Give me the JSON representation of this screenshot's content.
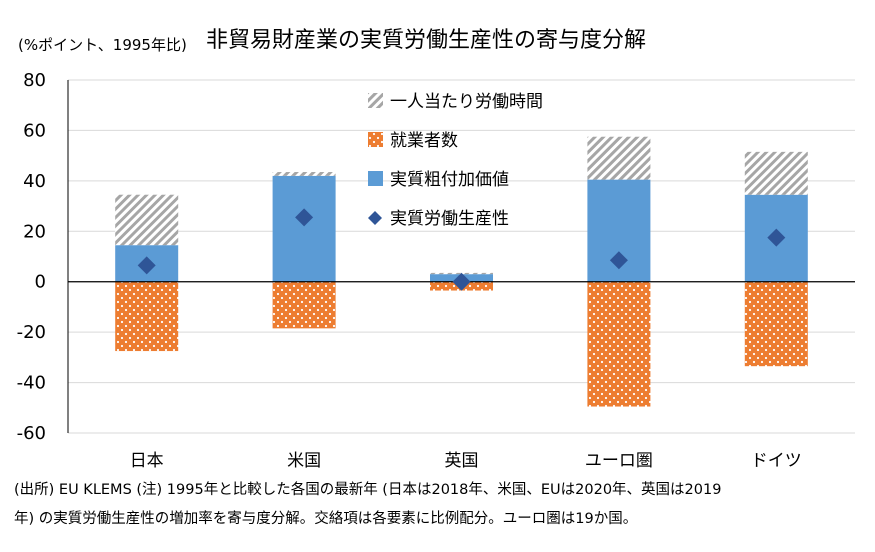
{
  "figure": {
    "unit": "(%ポイント、1995年比)",
    "title": "非貿易財産業の実質労働生産性の寄与度分解",
    "notes": [
      "(出所) EU KLEMS (注) 1995年と比較した各国の最新年 (日本は2018年、米国、EUは2020年、英国は2019",
      "年) の実質労働生産性の増加率を寄与度分解。交絡項は各要素に比例配分。ユーロ圏は19か国。"
    ]
  },
  "chart_data": {
    "type": "bar",
    "stacked": true,
    "categories": [
      "日本",
      "米国",
      "英国",
      "ユーロ圏",
      "ドイツ"
    ],
    "ylim": [
      -60,
      80
    ],
    "yticks": [
      -60,
      -40,
      -20,
      0,
      20,
      40,
      60,
      80
    ],
    "grid": true,
    "legend_position": "top-center",
    "series": [
      {
        "name": "一人当たり労働時間",
        "kind": "bar",
        "pattern": "hatch",
        "color": "#a6a6a6",
        "values": [
          20,
          1.5,
          0.5,
          17,
          17
        ]
      },
      {
        "name": "就業者数",
        "kind": "bar",
        "pattern": "dots",
        "color": "#ed7d31",
        "values": [
          -27.5,
          -18.5,
          -3.5,
          -49.5,
          -33.5
        ]
      },
      {
        "name": "実質粗付加価値",
        "kind": "bar",
        "pattern": "solid",
        "color": "#5b9bd5",
        "values": [
          14.5,
          42,
          3,
          40.5,
          34.5
        ]
      },
      {
        "name": "実質労働生産性",
        "kind": "marker",
        "marker": "diamond",
        "color": "#2f5597",
        "values": [
          6.5,
          25.5,
          0,
          8.5,
          17.5
        ]
      }
    ]
  }
}
